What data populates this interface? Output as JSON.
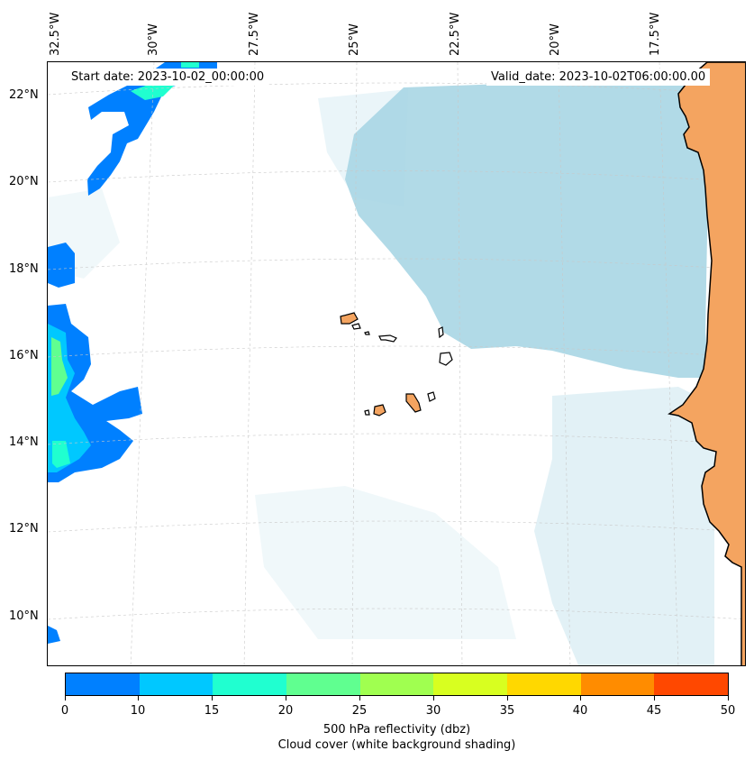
{
  "map": {
    "longitude_labels": [
      "32.5°W",
      "30°W",
      "27.5°W",
      "25°W",
      "22.5°W",
      "20°W",
      "17.5°W"
    ],
    "latitude_labels": [
      "22°N",
      "20°N",
      "18°N",
      "16°N",
      "14°N",
      "12°N",
      "10°N"
    ],
    "start_date_label": "Start date: 2023-10-02_00:00:00",
    "valid_date_label": "Valid_date: 2023-10-02T06:00:00.00",
    "colors": {
      "land": "#f4a460",
      "cloud_cover": "#add8e6",
      "gridline": "#c8c8c8",
      "coastline": "#000000"
    }
  },
  "colorbar": {
    "tick_labels": [
      "0",
      "10",
      "15",
      "20",
      "25",
      "30",
      "35",
      "40",
      "45",
      "50"
    ],
    "colors": [
      "#0080ff",
      "#00c8ff",
      "#20ffd0",
      "#60ff90",
      "#a0ff50",
      "#d8ff20",
      "#ffd800",
      "#ff8c00",
      "#ff4800"
    ],
    "label_line1": "500 hPa reflectivity (dbz)",
    "label_line2": "Cloud cover (white background shading)"
  }
}
